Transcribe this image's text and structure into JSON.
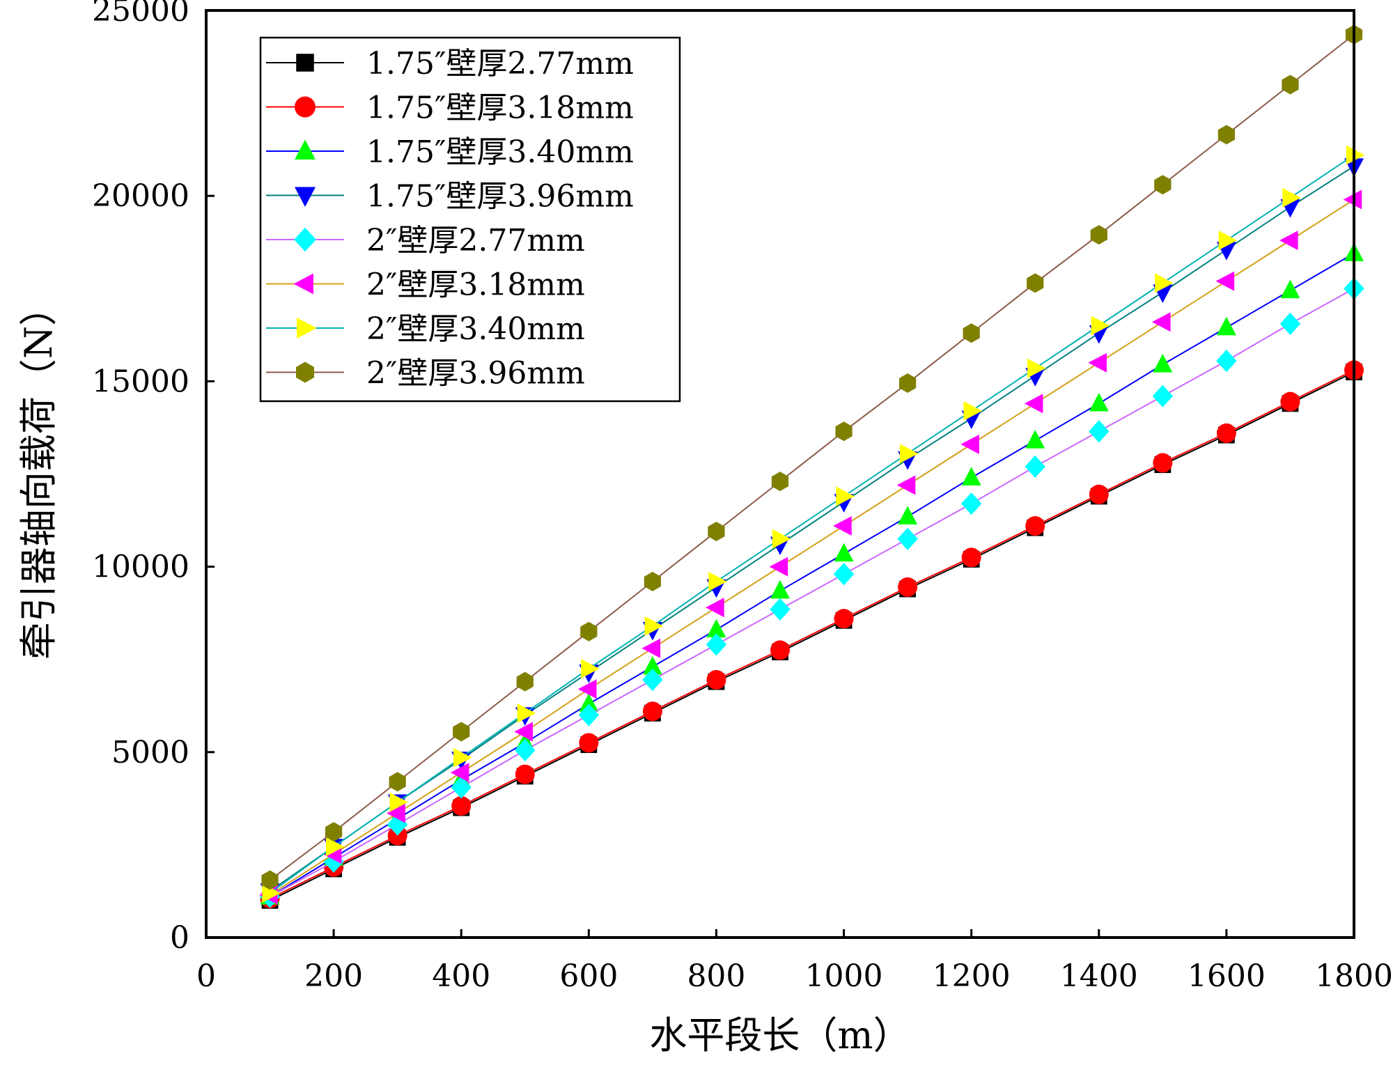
{
  "chart_data": {
    "type": "line",
    "title": "",
    "xlabel": "水平段长（m）",
    "ylabel": "牵引器轴向载荷（N）",
    "xlim": [
      0,
      1800
    ],
    "ylim": [
      0,
      25000
    ],
    "xticks": [
      0,
      200,
      400,
      600,
      800,
      1000,
      1200,
      1400,
      1600,
      1800
    ],
    "yticks": [
      0,
      5000,
      10000,
      15000,
      20000,
      25000
    ],
    "xtick_labels": [
      "0",
      "200",
      "400",
      "600",
      "800",
      "1000",
      "1200",
      "1400",
      "1600",
      "1800"
    ],
    "ytick_labels": [
      "0",
      "5000",
      "10000",
      "15000",
      "20000",
      "25000"
    ],
    "grid": false,
    "legend_position": "top-left",
    "x": [
      100,
      200,
      300,
      400,
      500,
      600,
      700,
      800,
      900,
      1000,
      1100,
      1200,
      1300,
      1400,
      1500,
      1600,
      1700,
      1800
    ],
    "series": [
      {
        "name": "1.75″壁厚2.77mm",
        "marker": "square",
        "color": "#000000",
        "line_color": "#000000",
        "values": [
          1000,
          1850,
          2700,
          3500,
          4350,
          5200,
          6050,
          6900,
          7700,
          8550,
          9400,
          10200,
          11050,
          11900,
          12750,
          13550,
          14400,
          15250
        ]
      },
      {
        "name": "1.75″壁厚3.18mm",
        "marker": "circle",
        "color": "#ff0000",
        "line_color": "#ff0000",
        "values": [
          1050,
          1900,
          2750,
          3550,
          4400,
          5250,
          6100,
          6950,
          7750,
          8600,
          9450,
          10250,
          11100,
          11950,
          12800,
          13600,
          14450,
          15300
        ]
      },
      {
        "name": "1.75″壁厚3.40mm",
        "marker": "triangle-up",
        "color": "#00ff00",
        "line_color": "#0000ff",
        "values": [
          1100,
          2150,
          3200,
          4250,
          5250,
          6300,
          7300,
          8300,
          9350,
          10350,
          11350,
          12400,
          13400,
          14400,
          15450,
          16450,
          17450,
          18450
        ]
      },
      {
        "name": "1.75″壁厚3.96mm",
        "marker": "triangle-down",
        "color": "#0000ff",
        "line_color": "#008080",
        "values": [
          1250,
          2450,
          3650,
          4800,
          6000,
          7150,
          8300,
          9450,
          10600,
          11750,
          12900,
          14000,
          15150,
          16300,
          17400,
          18550,
          19700,
          20800
        ]
      },
      {
        "name": "2″壁厚2.77mm",
        "marker": "diamond",
        "color": "#00ffff",
        "line_color": "#cc66ff",
        "values": [
          1100,
          2050,
          3050,
          4050,
          5050,
          6000,
          6950,
          7900,
          8850,
          9800,
          10750,
          11700,
          12700,
          13650,
          14600,
          15550,
          16550,
          17500
        ]
      },
      {
        "name": "2″壁厚3.18mm",
        "marker": "triangle-left",
        "color": "#ff00ff",
        "line_color": "#d4a017",
        "values": [
          1150,
          2250,
          3350,
          4450,
          5550,
          6700,
          7800,
          8900,
          10000,
          11100,
          12200,
          13300,
          14400,
          15500,
          16600,
          17700,
          18800,
          19900
        ]
      },
      {
        "name": "2″壁厚3.40mm",
        "marker": "triangle-right",
        "color": "#ffff00",
        "line_color": "#00b3b3",
        "values": [
          1200,
          2450,
          3650,
          4850,
          6050,
          7250,
          8400,
          9600,
          10750,
          11900,
          13050,
          14200,
          15350,
          16500,
          17650,
          18800,
          19950,
          21100
        ]
      },
      {
        "name": "2″壁厚3.96mm",
        "marker": "hexagon",
        "color": "#808000",
        "line_color": "#8b5a4a",
        "values": [
          1550,
          2850,
          4200,
          5550,
          6900,
          8250,
          9600,
          10950,
          12300,
          13650,
          14950,
          16300,
          17650,
          18950,
          20300,
          21650,
          23000,
          24350
        ]
      }
    ]
  }
}
